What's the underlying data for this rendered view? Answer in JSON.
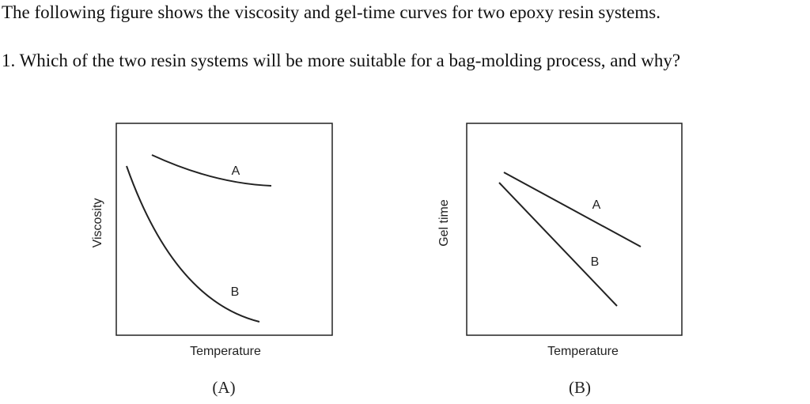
{
  "text": {
    "intro": "The following figure shows the viscosity and gel-time curves for two epoxy resin systems.",
    "question": "1. Which of the two resin systems will be more suitable for a bag-molding process, and why?"
  },
  "figures": [
    {
      "y_label": "Viscosity",
      "x_label": "Temperature",
      "curve_labels": [
        "A",
        "B"
      ],
      "caption": "(A)"
    },
    {
      "y_label": "Gel time",
      "x_label": "Temperature",
      "curve_labels": [
        "A",
        "B"
      ],
      "caption": "(B)"
    }
  ]
}
